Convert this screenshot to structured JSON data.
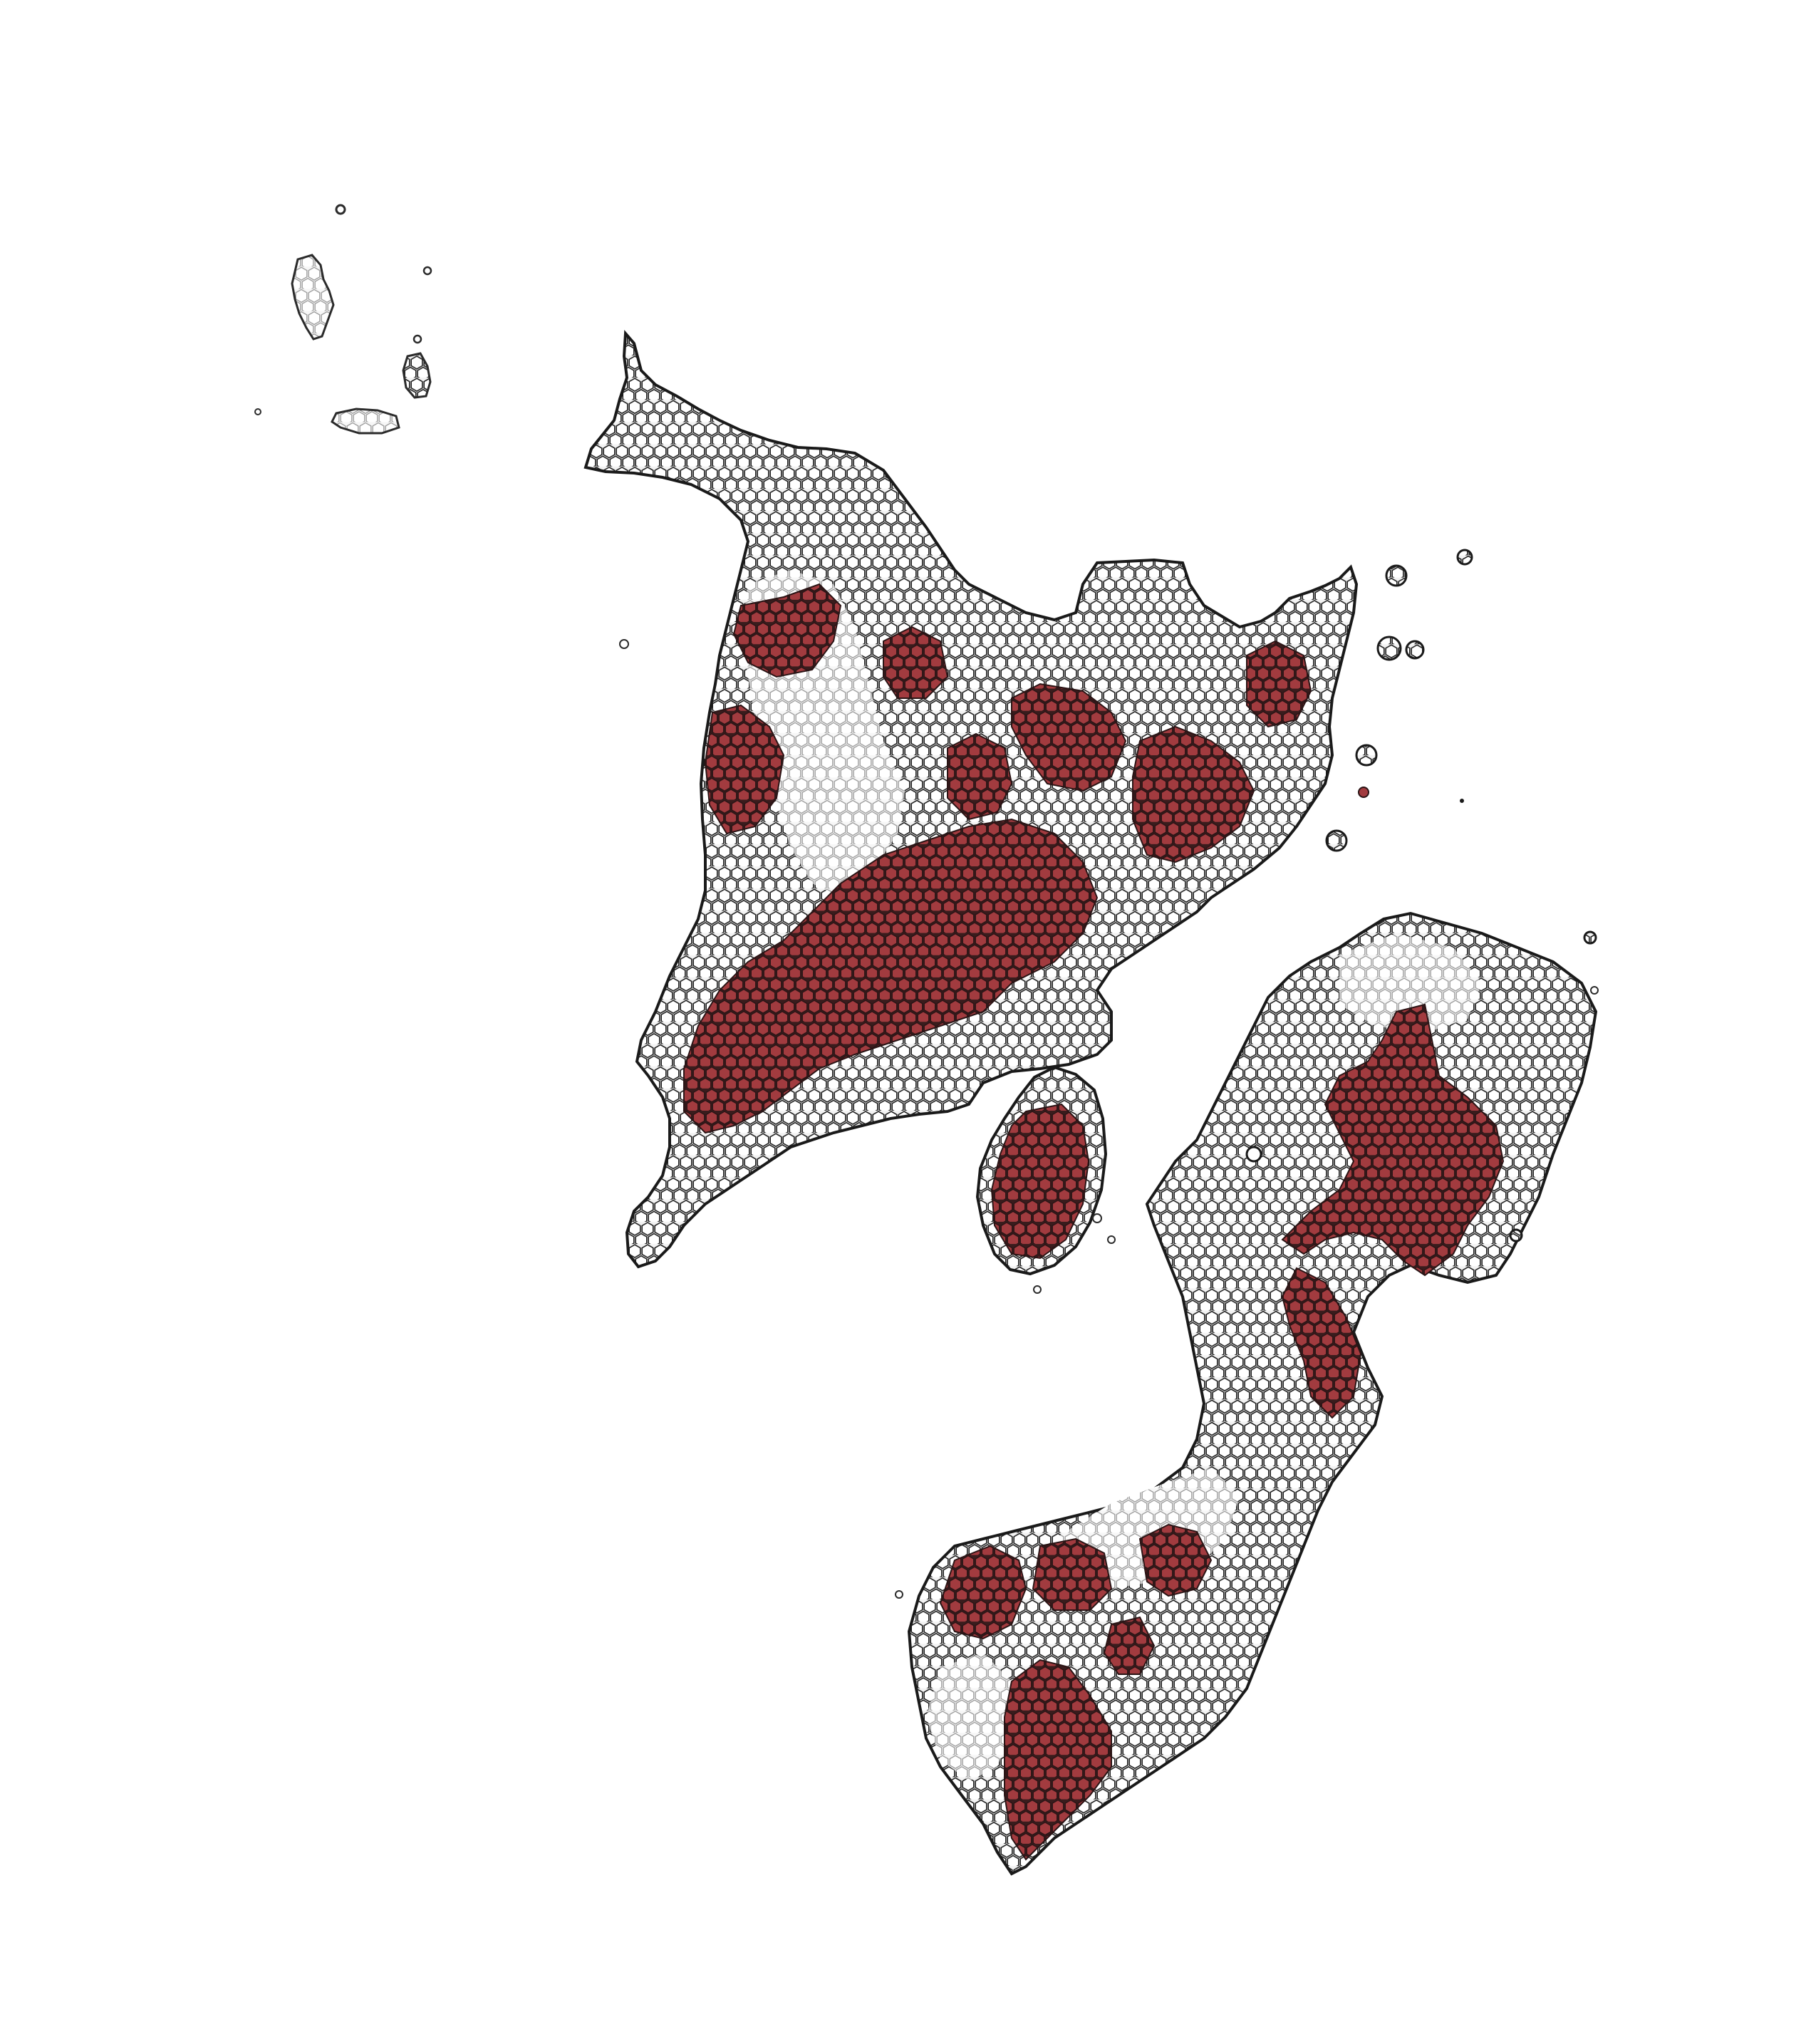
{
  "figure": {
    "kind": "hexbin-map",
    "background_color": "#ffffff",
    "land_outline_color": "#1e1e1e",
    "hex_fill_light": "#f4f4f4",
    "hex_stroke_dark": "#222222",
    "highlight_color": "#a23b3f"
  },
  "map_layers": [
    {
      "name": "small-northwest-islands",
      "category": "land"
    },
    {
      "name": "northern-peninsula",
      "category": "land"
    },
    {
      "name": "central-island",
      "category": "land"
    },
    {
      "name": "southeastern-peninsula",
      "category": "land"
    },
    {
      "name": "highlighted-cells",
      "category": "highlight"
    }
  ]
}
